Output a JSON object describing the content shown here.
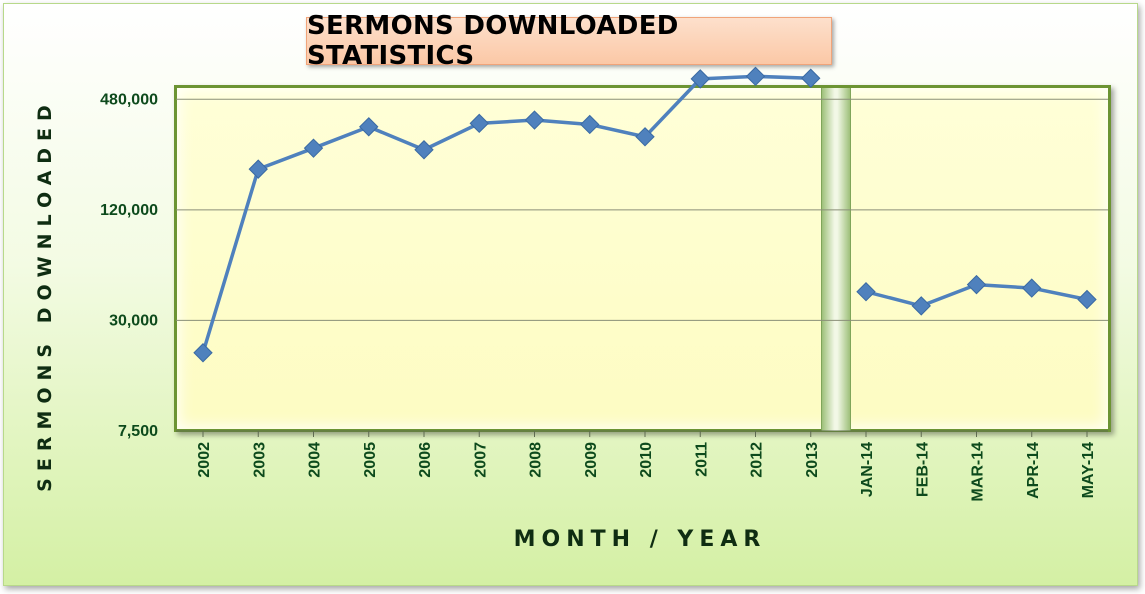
{
  "chart_data": {
    "type": "line",
    "title": "SERMONS DOWNLOADED STATISTICS",
    "xlabel": "MONTH / YEAR",
    "ylabel": "SERMONS DOWNLOADED",
    "y_scale": "log",
    "y_ticks": [
      7500,
      30000,
      120000,
      480000
    ],
    "y_tick_labels": [
      "7,500",
      "30,000",
      "120,000",
      "480,000"
    ],
    "ylim": [
      7500,
      960000
    ],
    "grid": true,
    "legend": "none",
    "series_color": "#4f81bd",
    "segments": [
      {
        "categories": [
          "2002",
          "2003",
          "2004",
          "2005",
          "2006",
          "2007",
          "2008",
          "2009",
          "2010",
          "2011",
          "2012",
          "2013"
        ],
        "values": [
          20000,
          200000,
          260000,
          340000,
          255000,
          355000,
          370000,
          350000,
          300000,
          620000,
          640000,
          625000
        ]
      },
      {
        "categories": [
          "JAN-14",
          "FEB-14",
          "MAR-14",
          "APR-14",
          "MAY-14"
        ],
        "values": [
          43000,
          36000,
          47000,
          45000,
          39000
        ]
      }
    ]
  }
}
